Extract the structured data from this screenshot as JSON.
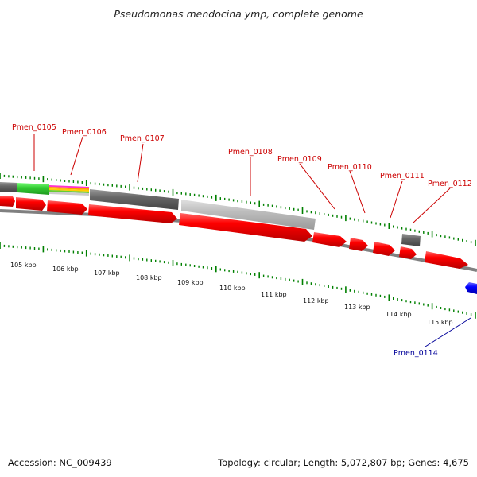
{
  "title": "Pseudomonas mendocina ymp, complete genome",
  "footer": {
    "accession": "Accession: NC_009439",
    "summary": "Topology: circular; Length: 5,072,807 bp; Genes: 4,675"
  },
  "colors": {
    "cds_red": "#ff0000",
    "cds_blue": "#0000ff",
    "track_gray": "#666666",
    "tick_green": "#008000",
    "label_red": "#cc0000",
    "label_blue": "#000099"
  },
  "kbp_labels": [
    "105 kbp",
    "106 kbp",
    "107 kbp",
    "108 kbp",
    "109 kbp",
    "110 kbp",
    "111 kbp",
    "112 kbp",
    "113 kbp",
    "114 kbp",
    "115 kbp"
  ],
  "gene_labels": [
    {
      "name": "Pmen_0105",
      "strand": "forward"
    },
    {
      "name": "Pmen_0106",
      "strand": "forward"
    },
    {
      "name": "Pmen_0107",
      "strand": "forward"
    },
    {
      "name": "Pmen_0108",
      "strand": "forward"
    },
    {
      "name": "Pmen_0109",
      "strand": "forward"
    },
    {
      "name": "Pmen_0110",
      "strand": "forward"
    },
    {
      "name": "Pmen_0111",
      "strand": "forward"
    },
    {
      "name": "Pmen_0112",
      "strand": "forward"
    },
    {
      "name": "Pmen_0114",
      "strand": "reverse"
    }
  ]
}
